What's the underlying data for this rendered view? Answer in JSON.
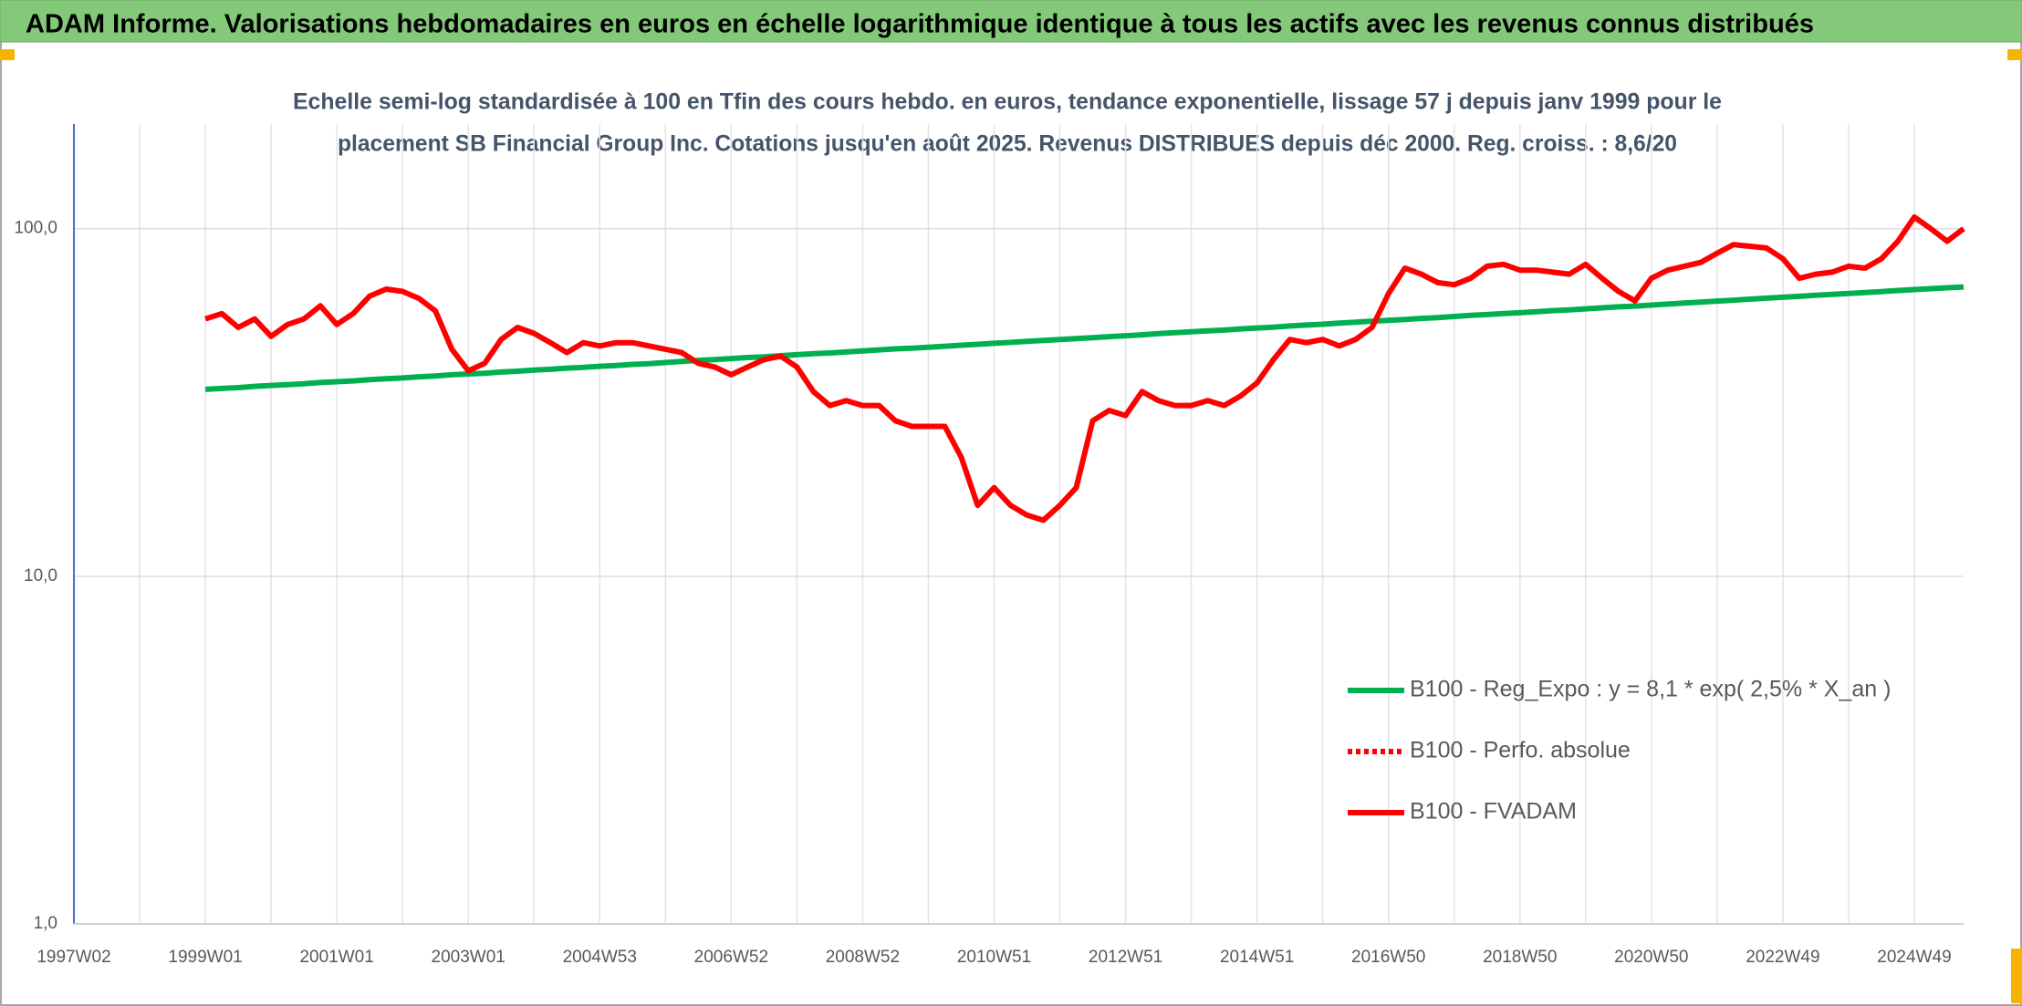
{
  "chart_data": {
    "type": "line",
    "title": "ADAM Informe. Valorisations hebdomadaires en euros en échelle logarithmique identique à tous les actifs avec les revenus connus distribués",
    "subtitle": [
      "Echelle semi-log standardisée à 100 en Tfin des cours hebdo. en euros, tendance exponentielle, lissage 57 j depuis janv 1999 pour le",
      "placement SB Financial Group Inc. Cotations jusqu'en août 2025. Revenus DISTRIBUES depuis déc 2000. Reg. croiss. : 8,6/20"
    ],
    "categories": [
      "1997W02",
      null,
      null,
      null,
      null,
      null,
      null,
      null,
      "1999W01",
      null,
      null,
      null,
      null,
      null,
      null,
      null,
      "2001W01",
      null,
      null,
      null,
      null,
      null,
      null,
      null,
      "2003W01",
      null,
      null,
      null,
      null,
      null,
      null,
      null,
      "2004W53",
      null,
      null,
      null,
      null,
      null,
      null,
      null,
      "2006W52",
      null,
      null,
      null,
      null,
      null,
      null,
      null,
      "2008W52",
      null,
      null,
      null,
      null,
      null,
      null,
      null,
      "2010W51",
      null,
      null,
      null,
      null,
      null,
      null,
      null,
      "2012W51",
      null,
      null,
      null,
      null,
      null,
      null,
      null,
      "2014W51",
      null,
      null,
      null,
      null,
      null,
      null,
      null,
      "2016W50",
      null,
      null,
      null,
      null,
      null,
      null,
      null,
      "2018W50",
      null,
      null,
      null,
      null,
      null,
      null,
      null,
      "2020W50",
      null,
      null,
      null,
      null,
      null,
      null,
      null,
      "2022W49",
      null,
      null,
      null,
      null,
      null,
      null,
      null,
      "2024W49",
      null,
      null,
      null
    ],
    "ylim": [
      1,
      200
    ],
    "log_scale": true,
    "yticks": [
      {
        "value": 1,
        "label": "1,0"
      },
      {
        "value": 10,
        "label": "10,0"
      },
      {
        "value": 100,
        "label": "100,0"
      }
    ],
    "grid": true,
    "legend": "lower right",
    "series": [
      {
        "name": "B100 - Reg_Expo : y = 8,1 * exp( 2,5% *  X_an )",
        "color": "#00b050",
        "style": "solid",
        "values": [
          null,
          null,
          null,
          null,
          null,
          null,
          null,
          null,
          34.5,
          34.7,
          34.9,
          35.2,
          35.4,
          35.6,
          35.8,
          36.1,
          36.3,
          36.5,
          36.8,
          37.0,
          37.2,
          37.5,
          37.7,
          38.0,
          38.2,
          38.4,
          38.7,
          38.9,
          39.2,
          39.4,
          39.7,
          39.9,
          40.2,
          40.4,
          40.7,
          40.9,
          41.2,
          41.5,
          41.8,
          42.0,
          42.3,
          42.6,
          42.8,
          43.1,
          43.4,
          43.7,
          43.9,
          44.2,
          44.5,
          44.8,
          45.1,
          45.3,
          45.6,
          45.9,
          46.2,
          46.5,
          46.8,
          47.1,
          47.4,
          47.7,
          48.0,
          48.3,
          48.6,
          48.9,
          49.2,
          49.5,
          49.9,
          50.2,
          50.5,
          50.8,
          51.1,
          51.5,
          51.8,
          52.1,
          52.5,
          52.8,
          53.1,
          53.5,
          53.8,
          54.2,
          54.5,
          54.8,
          55.2,
          55.5,
          55.9,
          56.3,
          56.6,
          57.0,
          57.3,
          57.7,
          58.1,
          58.4,
          58.8,
          59.2,
          59.6,
          59.9,
          60.3,
          60.7,
          61.1,
          61.5,
          61.9,
          62.3,
          62.7,
          63.1,
          63.5,
          63.9,
          64.3,
          64.7,
          65.1,
          65.5,
          65.9,
          66.4,
          66.8,
          67.2,
          67.6,
          68.0
        ]
      },
      {
        "name": "B100 - Perfo. absolue",
        "color": "#ff0000",
        "style": "dotted",
        "values": [
          null,
          null,
          null,
          null,
          null,
          null,
          null,
          null,
          55,
          57,
          52,
          55,
          49,
          53,
          55,
          60,
          53,
          57,
          64,
          67,
          66,
          63,
          58,
          45,
          39,
          41,
          48,
          52,
          50,
          47,
          44,
          47,
          46,
          47,
          47,
          46,
          45,
          44,
          41,
          40,
          38,
          40,
          42,
          43,
          40,
          34,
          31,
          32,
          31,
          31,
          28,
          27,
          27,
          27,
          22,
          16,
          18,
          16,
          15,
          14.5,
          16,
          18,
          28,
          30,
          29,
          34,
          32,
          31,
          31,
          32,
          31,
          33,
          36,
          42,
          48,
          47,
          48,
          46,
          48,
          52,
          65,
          77,
          74,
          70,
          69,
          72,
          78,
          79,
          76,
          76,
          75,
          74,
          79,
          72,
          66,
          62,
          72,
          76,
          78,
          80,
          85,
          90,
          89,
          88,
          82,
          72,
          74,
          75,
          78,
          77,
          82,
          92,
          108,
          100,
          92,
          100
        ]
      },
      {
        "name": "B100 - FVADAM",
        "color": "#ff0000",
        "style": "solid",
        "values": [
          null,
          null,
          null,
          null,
          null,
          null,
          null,
          null,
          55,
          57,
          52,
          55,
          49,
          53,
          55,
          60,
          53,
          57,
          64,
          67,
          66,
          63,
          58,
          45,
          39,
          41,
          48,
          52,
          50,
          47,
          44,
          47,
          46,
          47,
          47,
          46,
          45,
          44,
          41,
          40,
          38,
          40,
          42,
          43,
          40,
          34,
          31,
          32,
          31,
          31,
          28,
          27,
          27,
          27,
          22,
          16,
          18,
          16,
          15,
          14.5,
          16,
          18,
          28,
          30,
          29,
          34,
          32,
          31,
          31,
          32,
          31,
          33,
          36,
          42,
          48,
          47,
          48,
          46,
          48,
          52,
          65,
          77,
          74,
          70,
          69,
          72,
          78,
          79,
          76,
          76,
          75,
          74,
          79,
          72,
          66,
          62,
          72,
          76,
          78,
          80,
          85,
          90,
          89,
          88,
          82,
          72,
          74,
          75,
          78,
          77,
          82,
          92,
          108,
          100,
          92,
          100
        ]
      }
    ]
  }
}
